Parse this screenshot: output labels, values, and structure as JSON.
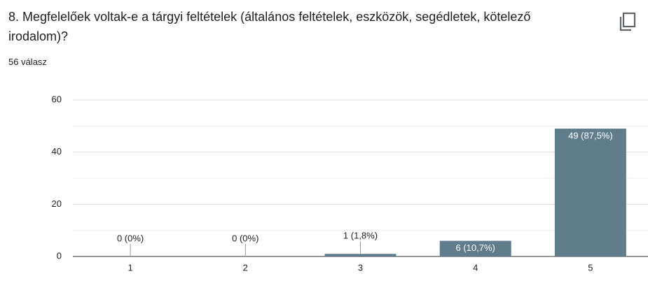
{
  "chart_data": {
    "type": "bar",
    "title": "8. Megfelelőek voltak-e a tárgyi feltételek (általános feltételek, eszközök, segédletek, kötelező irodalom)?",
    "subtitle": "56 válasz",
    "categories": [
      "1",
      "2",
      "3",
      "4",
      "5"
    ],
    "values": [
      0,
      0,
      1,
      6,
      49
    ],
    "value_labels": [
      "0 (0%)",
      "0 (0%)",
      "1 (1,8%)",
      "6 (10,7%)",
      "49 (87,5%)"
    ],
    "color": "#607d8b",
    "ylim": [
      0,
      60
    ],
    "yticks": [
      0,
      20,
      40,
      60
    ],
    "grid": true
  }
}
